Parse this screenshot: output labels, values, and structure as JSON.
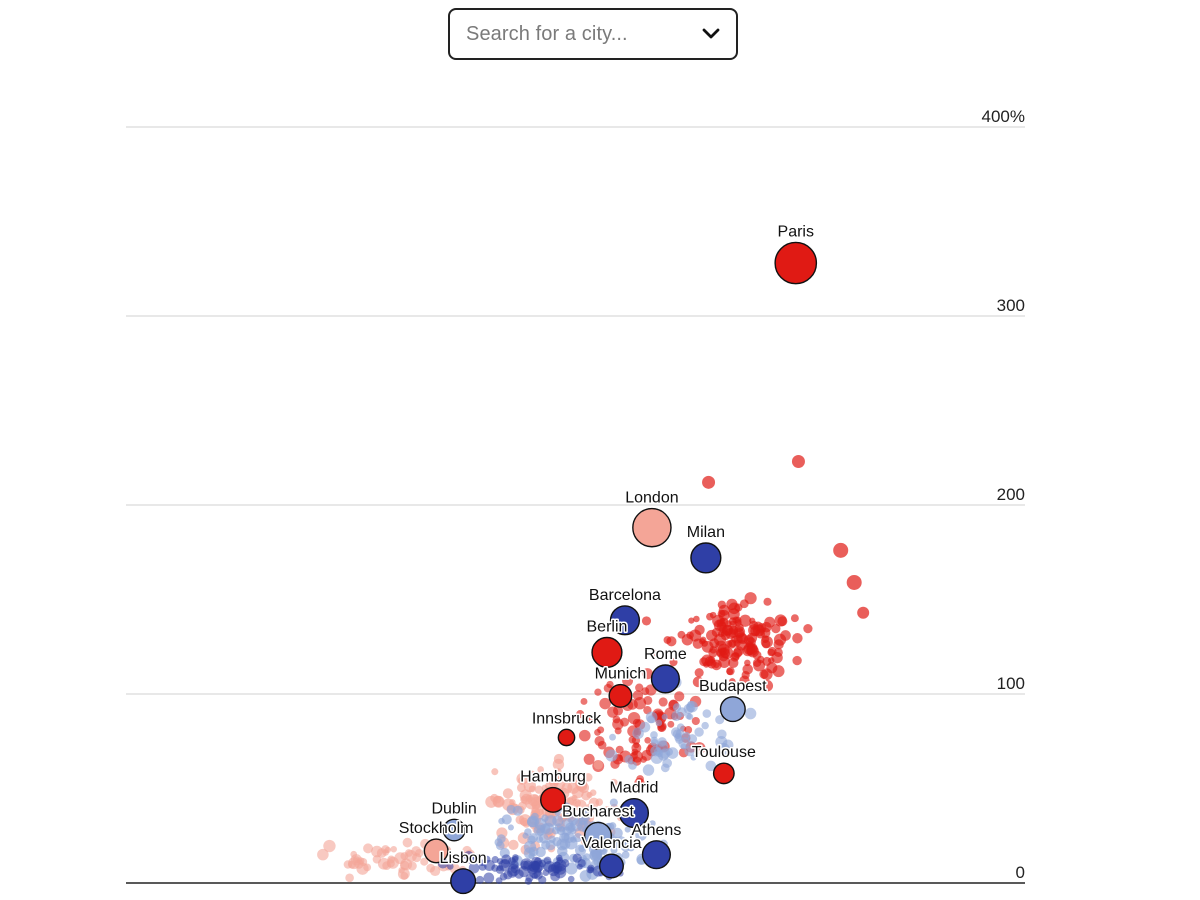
{
  "search": {
    "placeholder": "Search for a city...",
    "icon": "chevron-down-icon"
  },
  "chart_data": {
    "type": "scatter",
    "title": "",
    "xlabel": "",
    "ylabel": "",
    "ylim": [
      0,
      400
    ],
    "y_ticks": [
      {
        "value": 0,
        "label": "0"
      },
      {
        "value": 100,
        "label": "100"
      },
      {
        "value": 200,
        "label": "200"
      },
      {
        "value": 300,
        "label": "300"
      },
      {
        "value": 400,
        "label": "400%"
      }
    ],
    "x_axis_labels": false,
    "grid": true,
    "colors": {
      "red": "#e01a14",
      "pink": "#f4a597",
      "blue": "#2f3fa6",
      "light_blue": "#8fa6d8",
      "gridline": "#d9d9d9",
      "axis": "#222222"
    },
    "highlighted_cities": [
      {
        "name": "Paris",
        "x": 74.5,
        "y": 328,
        "size": 3.2,
        "color": "red"
      },
      {
        "name": "London",
        "x": 58.5,
        "y": 188,
        "size": 2.9,
        "color": "pink"
      },
      {
        "name": "Milan",
        "x": 64.5,
        "y": 172,
        "size": 2.1,
        "color": "blue"
      },
      {
        "name": "Barcelona",
        "x": 55.5,
        "y": 139,
        "size": 2.0,
        "color": "blue"
      },
      {
        "name": "Berlin",
        "x": 53.5,
        "y": 122,
        "size": 2.1,
        "color": "red"
      },
      {
        "name": "Rome",
        "x": 60,
        "y": 108,
        "size": 1.9,
        "color": "blue"
      },
      {
        "name": "Munich",
        "x": 55,
        "y": 99,
        "size": 1.4,
        "color": "red"
      },
      {
        "name": "Budapest",
        "x": 67.5,
        "y": 92,
        "size": 1.6,
        "color": "light_blue"
      },
      {
        "name": "Innsbruck",
        "x": 49,
        "y": 77,
        "size": 0.8,
        "color": "red"
      },
      {
        "name": "Toulouse",
        "x": 66.5,
        "y": 58,
        "size": 1.2,
        "color": "red"
      },
      {
        "name": "Hamburg",
        "x": 47.5,
        "y": 44,
        "size": 1.6,
        "color": "red"
      },
      {
        "name": "Madrid",
        "x": 56.5,
        "y": 37,
        "size": 2.0,
        "color": "blue"
      },
      {
        "name": "Dublin",
        "x": 36.5,
        "y": 28,
        "size": 1.3,
        "color": "light_blue"
      },
      {
        "name": "Bucharest",
        "x": 52.5,
        "y": 25,
        "size": 1.8,
        "color": "light_blue"
      },
      {
        "name": "Stockholm",
        "x": 34.5,
        "y": 17,
        "size": 1.5,
        "color": "pink"
      },
      {
        "name": "Athens",
        "x": 59,
        "y": 15,
        "size": 1.9,
        "color": "blue"
      },
      {
        "name": "Valencia",
        "x": 54,
        "y": 9,
        "size": 1.5,
        "color": "blue"
      },
      {
        "name": "Lisbon",
        "x": 37.5,
        "y": 1,
        "size": 1.6,
        "color": "blue"
      }
    ]
  }
}
